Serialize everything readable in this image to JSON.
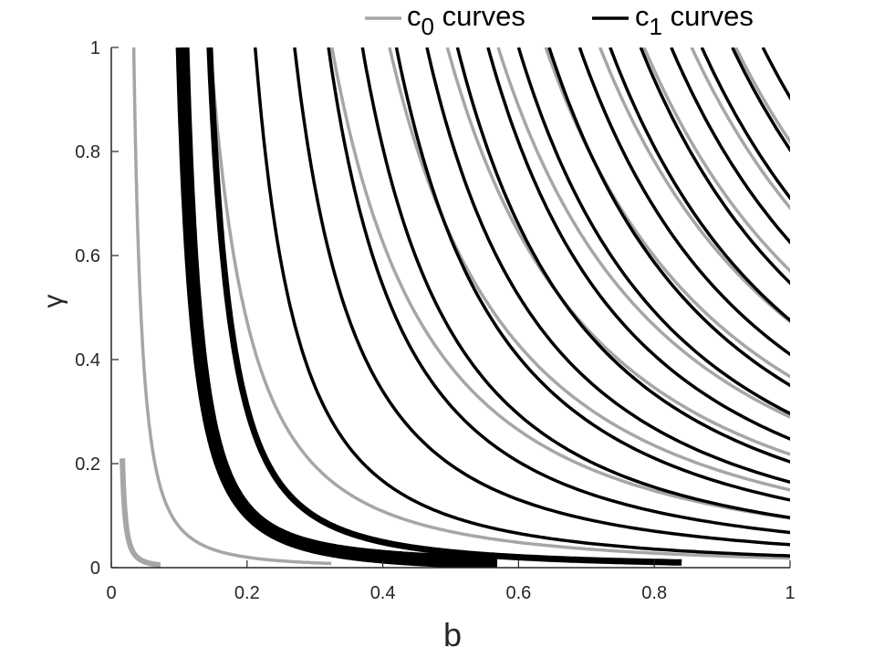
{
  "chart_data": {
    "type": "line",
    "xlabel": "b",
    "ylabel": "γ",
    "xlim": [
      0,
      1
    ],
    "ylim": [
      0,
      1
    ],
    "x_ticks": [
      "0",
      "0.2",
      "0.4",
      "0.6",
      "0.8",
      "1"
    ],
    "y_ticks": [
      "0",
      "0.2",
      "0.4",
      "0.6",
      "0.8",
      "1"
    ],
    "grid": false,
    "legend_position": "top-right",
    "series": [
      {
        "name": "c",
        "subscript": "0",
        "suffix": " curves",
        "color": "#a6a6a6",
        "curves": [
          {
            "b_inf": 0.008,
            "b_at_gamma1": 0.0115,
            "gamma_min": 0.005,
            "gamma_max": 0.21,
            "stroke": 6
          },
          {
            "b_inf": 0.011,
            "b_at_gamma1": 0.033,
            "gamma_min": 0.008,
            "gamma_max": 1,
            "stroke": 3.5
          },
          {
            "b_inf": 0.04,
            "b_at_gamma1": 0.146,
            "gamma_min": 0.01,
            "gamma_max": 1,
            "stroke": 3.5
          },
          {
            "b_inf": 0.07,
            "b_at_gamma1": 0.325,
            "gamma_min": 0.011,
            "gamma_max": 1,
            "stroke": 3.5
          },
          {
            "b_inf": 0.09,
            "b_at_gamma1": 0.41,
            "gamma_min": 0.022,
            "gamma_max": 1,
            "stroke": 3.5
          },
          {
            "b_inf": 0.11,
            "b_at_gamma1": 0.495,
            "gamma_min": 0.032,
            "gamma_max": 1,
            "stroke": 3.5
          },
          {
            "b_inf": 0.13,
            "b_at_gamma1": 0.57,
            "gamma_min": 0.042,
            "gamma_max": 1,
            "stroke": 3.5
          },
          {
            "b_inf": 0.15,
            "b_at_gamma1": 0.64,
            "gamma_min": 0.055,
            "gamma_max": 1,
            "stroke": 3.5
          },
          {
            "b_inf": 0.17,
            "b_at_gamma1": 0.72,
            "gamma_min": 0.07,
            "gamma_max": 1,
            "stroke": 3.5
          },
          {
            "b_inf": 0.19,
            "b_at_gamma1": 0.785,
            "gamma_min": 0.085,
            "gamma_max": 1,
            "stroke": 3.5
          },
          {
            "b_inf": 0.21,
            "b_at_gamma1": 0.855,
            "gamma_min": 0.1,
            "gamma_max": 1,
            "stroke": 3.5
          },
          {
            "b_inf": 0.23,
            "b_at_gamma1": 0.92,
            "gamma_min": 0.12,
            "gamma_max": 1,
            "stroke": 3.5
          }
        ]
      },
      {
        "name": "c",
        "subscript": "1",
        "suffix": " curves",
        "color": "#000000",
        "curves": [
          {
            "b_inf": 0.065,
            "b_at_gamma1": 0.105,
            "gamma_min": 0.01,
            "gamma_max": 1,
            "stroke": 15
          },
          {
            "b_inf": 0.085,
            "b_at_gamma1": 0.145,
            "gamma_min": 0.01,
            "gamma_max": 1,
            "stroke": 7
          },
          {
            "b_inf": 0.1,
            "b_at_gamma1": 0.212,
            "gamma_min": 0.01,
            "gamma_max": 1,
            "stroke": 3.5
          },
          {
            "b_inf": 0.11,
            "b_at_gamma1": 0.27,
            "gamma_min": 0.01,
            "gamma_max": 1,
            "stroke": 3.5
          },
          {
            "b_inf": 0.12,
            "b_at_gamma1": 0.32,
            "gamma_min": 0.01,
            "gamma_max": 1,
            "stroke": 3.5
          },
          {
            "b_inf": 0.13,
            "b_at_gamma1": 0.37,
            "gamma_min": 0.01,
            "gamma_max": 1,
            "stroke": 3.5
          },
          {
            "b_inf": 0.14,
            "b_at_gamma1": 0.42,
            "gamma_min": 0.01,
            "gamma_max": 1,
            "stroke": 3.5
          },
          {
            "b_inf": 0.15,
            "b_at_gamma1": 0.465,
            "gamma_min": 0.01,
            "gamma_max": 1,
            "stroke": 3.5
          },
          {
            "b_inf": 0.16,
            "b_at_gamma1": 0.51,
            "gamma_min": 0.012,
            "gamma_max": 1,
            "stroke": 3.5
          },
          {
            "b_inf": 0.17,
            "b_at_gamma1": 0.555,
            "gamma_min": 0.014,
            "gamma_max": 1,
            "stroke": 3.5
          },
          {
            "b_inf": 0.18,
            "b_at_gamma1": 0.6,
            "gamma_min": 0.017,
            "gamma_max": 1,
            "stroke": 3.5
          },
          {
            "b_inf": 0.19,
            "b_at_gamma1": 0.645,
            "gamma_min": 0.02,
            "gamma_max": 1,
            "stroke": 3.5
          },
          {
            "b_inf": 0.2,
            "b_at_gamma1": 0.69,
            "gamma_min": 0.025,
            "gamma_max": 1,
            "stroke": 3.5
          },
          {
            "b_inf": 0.21,
            "b_at_gamma1": 0.735,
            "gamma_min": 0.03,
            "gamma_max": 1,
            "stroke": 3.5
          },
          {
            "b_inf": 0.22,
            "b_at_gamma1": 0.78,
            "gamma_min": 0.036,
            "gamma_max": 1,
            "stroke": 3.5
          },
          {
            "b_inf": 0.23,
            "b_at_gamma1": 0.825,
            "gamma_min": 0.043,
            "gamma_max": 1,
            "stroke": 3.5
          },
          {
            "b_inf": 0.24,
            "b_at_gamma1": 0.87,
            "gamma_min": 0.05,
            "gamma_max": 1,
            "stroke": 3.5
          },
          {
            "b_inf": 0.25,
            "b_at_gamma1": 0.915,
            "gamma_min": 0.058,
            "gamma_max": 1,
            "stroke": 3.5
          },
          {
            "b_inf": 0.26,
            "b_at_gamma1": 0.96,
            "gamma_min": 0.066,
            "gamma_max": 1,
            "stroke": 3.5
          }
        ]
      }
    ]
  }
}
